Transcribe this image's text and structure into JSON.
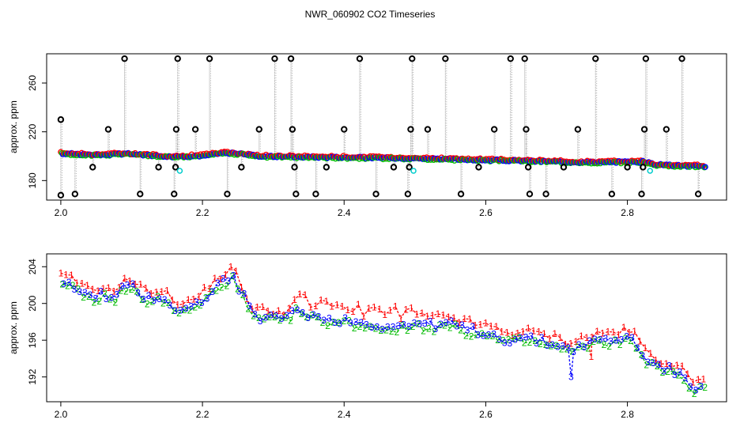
{
  "title": "NWR_060902  CO2 Timeseries",
  "colors": {
    "axis": "#000000",
    "drop": "#999999",
    "outlier": "#000000",
    "flagged": "#00cccc",
    "s1": "#ff0000",
    "s2": "#00bb00",
    "s3": "#0000ff"
  },
  "chart_data": [
    {
      "type": "scatter",
      "name": "overview",
      "ylabel": "approx. ppm",
      "xlim": [
        1.98,
        2.94
      ],
      "ylim": [
        164,
        284
      ],
      "xticks": [
        2.0,
        2.2,
        2.4,
        2.6,
        2.8
      ],
      "xtick_labels": [
        "2.0",
        "2.2",
        "2.4",
        "2.6",
        "2.8"
      ],
      "yticks": [
        180,
        220,
        260
      ],
      "ytick_labels": [
        "180",
        "220",
        "260"
      ],
      "trend": [
        [
          2.0,
          202.2
        ],
        [
          2.05,
          201.0
        ],
        [
          2.09,
          202.0
        ],
        [
          2.13,
          200.5
        ],
        [
          2.16,
          199.5
        ],
        [
          2.2,
          200.5
        ],
        [
          2.23,
          202.8
        ],
        [
          2.26,
          201.5
        ],
        [
          2.28,
          200.0
        ],
        [
          2.33,
          199.5
        ],
        [
          2.4,
          199.0
        ],
        [
          2.48,
          198.5
        ],
        [
          2.55,
          197.5
        ],
        [
          2.63,
          196.5
        ],
        [
          2.7,
          195.5
        ],
        [
          2.75,
          195.0
        ],
        [
          2.82,
          195.5
        ],
        [
          2.84,
          193.0
        ],
        [
          2.88,
          192.0
        ],
        [
          2.91,
          191.8
        ]
      ],
      "outliers": [
        [
          2.0,
          230
        ],
        [
          2.0,
          168
        ],
        [
          2.02,
          169
        ],
        [
          2.045,
          191
        ],
        [
          2.067,
          222
        ],
        [
          2.09,
          280
        ],
        [
          2.112,
          169
        ],
        [
          2.138,
          191
        ],
        [
          2.16,
          169
        ],
        [
          2.162,
          191
        ],
        [
          2.163,
          222
        ],
        [
          2.165,
          280
        ],
        [
          2.19,
          222
        ],
        [
          2.21,
          280
        ],
        [
          2.235,
          169
        ],
        [
          2.255,
          191
        ],
        [
          2.28,
          222
        ],
        [
          2.302,
          280
        ],
        [
          2.325,
          280
        ],
        [
          2.327,
          222
        ],
        [
          2.33,
          191
        ],
        [
          2.332,
          169
        ],
        [
          2.36,
          169
        ],
        [
          2.375,
          191
        ],
        [
          2.4,
          222
        ],
        [
          2.422,
          280
        ],
        [
          2.445,
          169
        ],
        [
          2.47,
          191
        ],
        [
          2.49,
          169
        ],
        [
          2.492,
          191
        ],
        [
          2.494,
          222
        ],
        [
          2.496,
          280
        ],
        [
          2.518,
          222
        ],
        [
          2.543,
          280
        ],
        [
          2.565,
          169
        ],
        [
          2.59,
          191
        ],
        [
          2.612,
          222
        ],
        [
          2.635,
          280
        ],
        [
          2.655,
          280
        ],
        [
          2.657,
          222
        ],
        [
          2.66,
          191
        ],
        [
          2.662,
          169
        ],
        [
          2.685,
          169
        ],
        [
          2.71,
          191
        ],
        [
          2.73,
          222
        ],
        [
          2.755,
          280
        ],
        [
          2.778,
          169
        ],
        [
          2.8,
          191
        ],
        [
          2.82,
          169
        ],
        [
          2.822,
          191
        ],
        [
          2.824,
          222
        ],
        [
          2.826,
          280
        ],
        [
          2.855,
          222
        ],
        [
          2.877,
          280
        ],
        [
          2.9,
          169
        ]
      ],
      "flagged": [
        [
          2.168,
          188
        ],
        [
          2.498,
          188
        ],
        [
          2.832,
          188
        ]
      ]
    },
    {
      "type": "scatter",
      "name": "detail",
      "ylabel": "approx. ppm",
      "xlim": [
        1.98,
        2.94
      ],
      "ylim": [
        189.3,
        205.4
      ],
      "xticks": [
        2.0,
        2.2,
        2.4,
        2.6,
        2.8
      ],
      "xtick_labels": [
        "2.0",
        "2.2",
        "2.4",
        "2.6",
        "2.8"
      ],
      "yticks": [
        192,
        196,
        200,
        204
      ],
      "ytick_labels": [
        "192",
        "196",
        "200",
        "204"
      ],
      "series": [
        {
          "name": "1",
          "offset": 0.8
        },
        {
          "name": "2",
          "offset": -0.3
        },
        {
          "name": "3",
          "offset": 0.0
        }
      ],
      "trend": [
        [
          2.0,
          202.2
        ],
        [
          2.02,
          201.8
        ],
        [
          2.03,
          201.0
        ],
        [
          2.05,
          200.6
        ],
        [
          2.06,
          201.2
        ],
        [
          2.07,
          200.3
        ],
        [
          2.085,
          201.5
        ],
        [
          2.1,
          201.8
        ],
        [
          2.12,
          200.5
        ],
        [
          2.14,
          200.8
        ],
        [
          2.15,
          200.2
        ],
        [
          2.16,
          199.5
        ],
        [
          2.18,
          199.3
        ],
        [
          2.2,
          200.3
        ],
        [
          2.21,
          201.2
        ],
        [
          2.23,
          202.5
        ],
        [
          2.245,
          203.0
        ],
        [
          2.25,
          201.8
        ],
        [
          2.26,
          200.5
        ],
        [
          2.27,
          198.6
        ],
        [
          2.3,
          198.4
        ],
        [
          2.32,
          198.3
        ],
        [
          2.33,
          199.5
        ],
        [
          2.35,
          198.8
        ],
        [
          2.37,
          198.3
        ],
        [
          2.4,
          198.2
        ],
        [
          2.43,
          197.8
        ],
        [
          2.46,
          197.5
        ],
        [
          2.49,
          197.5
        ],
        [
          2.5,
          198.0
        ],
        [
          2.52,
          197.6
        ],
        [
          2.55,
          197.8
        ],
        [
          2.57,
          197.2
        ],
        [
          2.6,
          196.8
        ],
        [
          2.63,
          196.0
        ],
        [
          2.65,
          196.2
        ],
        [
          2.67,
          196.0
        ],
        [
          2.7,
          195.5
        ],
        [
          2.72,
          195.0
        ],
        [
          2.75,
          195.8
        ],
        [
          2.77,
          196.0
        ],
        [
          2.8,
          196.2
        ],
        [
          2.81,
          196.0
        ],
        [
          2.82,
          194.5
        ],
        [
          2.84,
          193.2
        ],
        [
          2.86,
          192.8
        ],
        [
          2.88,
          191.8
        ],
        [
          2.895,
          190.8
        ],
        [
          2.91,
          191.5
        ]
      ],
      "dips": [
        [
          2.72,
          193.2
        ],
        [
          2.723,
          192.3
        ],
        [
          2.745,
          193.8
        ],
        [
          2.748,
          194.2
        ]
      ]
    }
  ]
}
